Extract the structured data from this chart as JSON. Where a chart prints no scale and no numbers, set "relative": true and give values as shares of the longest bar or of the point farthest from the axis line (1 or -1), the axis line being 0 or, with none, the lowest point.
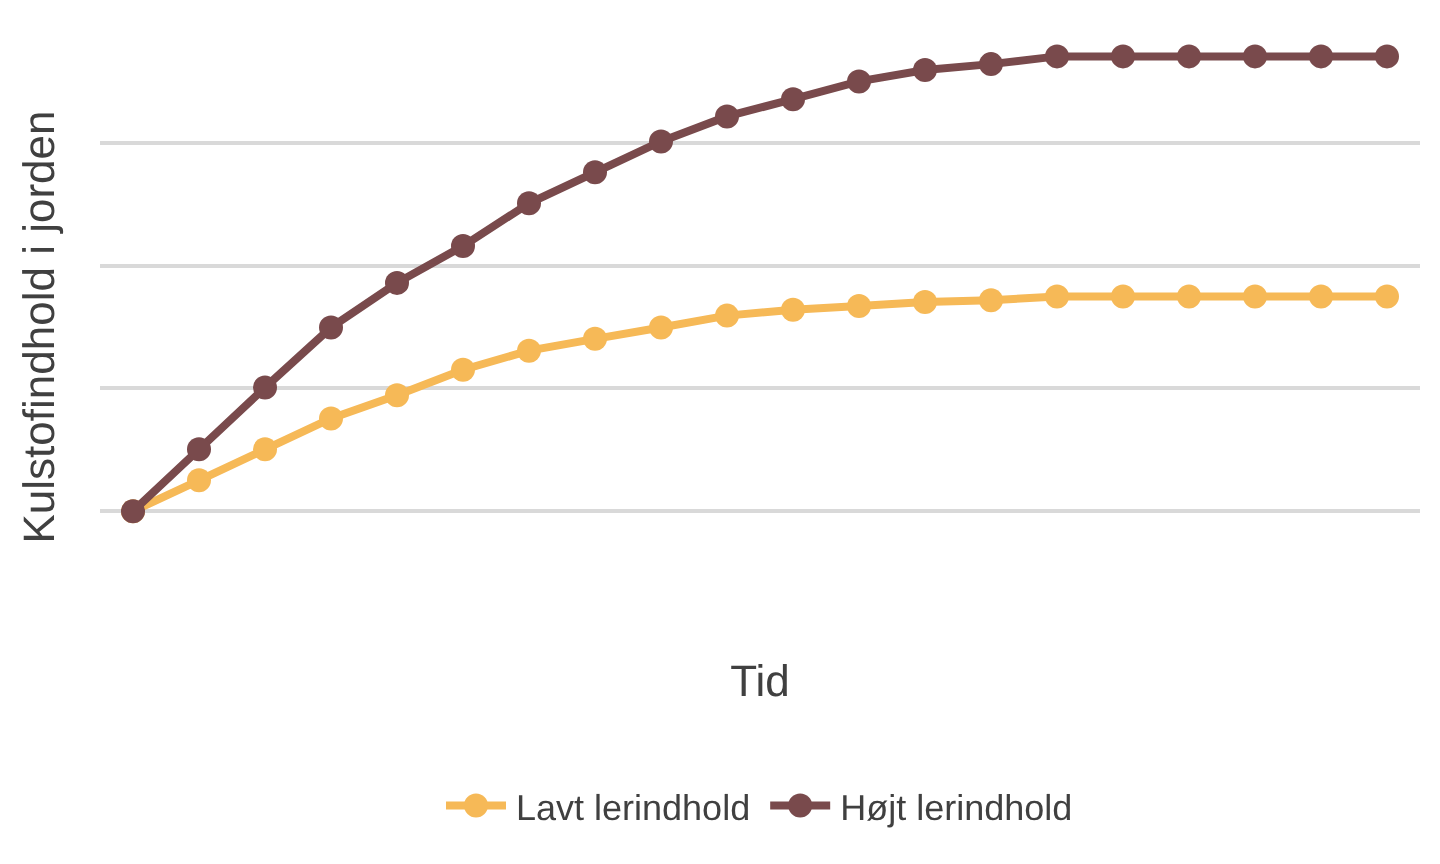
{
  "chart_data": {
    "type": "line",
    "relative": true,
    "xlabel": "Tid",
    "ylabel": "Kulstofindhold i jorden",
    "categories": [
      null,
      null,
      null,
      null,
      null,
      null,
      null,
      null,
      null,
      null,
      null,
      null,
      null,
      null,
      null,
      null,
      null,
      null,
      null,
      null
    ],
    "series": [
      {
        "name": "Lavt lerindhold",
        "color": "#f6b957",
        "values": [
          0,
          0.068,
          0.136,
          0.204,
          0.255,
          0.311,
          0.353,
          0.379,
          0.404,
          0.43,
          0.443,
          0.451,
          0.46,
          0.464,
          0.472,
          0.472,
          0.472,
          0.472,
          0.472,
          0.472
        ]
      },
      {
        "name": "Højt lerindhold",
        "color": "#794a4c",
        "values": [
          0,
          0.136,
          0.272,
          0.404,
          0.502,
          0.583,
          0.677,
          0.745,
          0.813,
          0.868,
          0.906,
          0.945,
          0.97,
          0.983,
          1,
          1,
          1,
          1,
          1,
          1
        ]
      }
    ],
    "grid": "y",
    "legend": "bottom",
    "marker": "circle",
    "line_style": "solid"
  }
}
